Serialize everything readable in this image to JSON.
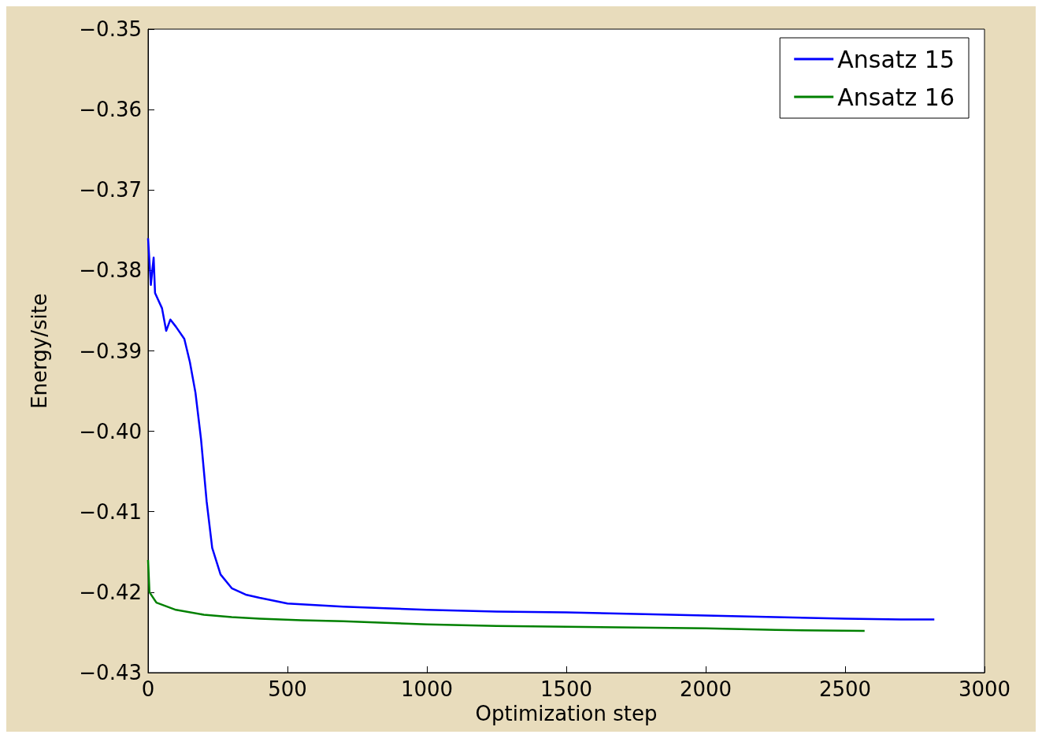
{
  "chart_data": {
    "type": "line",
    "xlabel": "Optimization step",
    "ylabel": "Energy/site",
    "xlim": [
      0,
      3000
    ],
    "xticks": [
      0,
      500,
      1000,
      1500,
      2000,
      2500,
      3000
    ],
    "ylim": [
      -0.43,
      -0.35
    ],
    "yticks": [
      -0.43,
      -0.42,
      -0.41,
      {
        "value": -0.4,
        "label": "−0.40"
      },
      -0.39,
      -0.38,
      -0.37,
      -0.36,
      -0.35
    ],
    "grid": false,
    "legend": "top right",
    "marker": "none",
    "line_style": "solid",
    "series": [
      {
        "name": "Ansatz 15",
        "color": "#0000ff",
        "x": [
          0,
          5,
          10,
          20,
          25,
          50,
          65,
          80,
          100,
          130,
          150,
          170,
          190,
          210,
          230,
          260,
          300,
          350,
          400,
          500,
          600,
          700,
          850,
          1000,
          1250,
          1500,
          1750,
          2000,
          2250,
          2500,
          2700,
          2820
        ],
        "values": [
          -0.376,
          -0.3789,
          -0.3818,
          -0.3784,
          -0.3828,
          -0.3847,
          -0.3875,
          -0.3861,
          -0.387,
          -0.3885,
          -0.3914,
          -0.3952,
          -0.401,
          -0.4087,
          -0.4145,
          -0.4178,
          -0.4195,
          -0.4203,
          -0.4207,
          -0.4214,
          -0.4216,
          -0.4218,
          -0.422,
          -0.4222,
          -0.4224,
          -0.4225,
          -0.4227,
          -0.4229,
          -0.4231,
          -0.4233,
          -0.4234,
          -0.4234
        ]
      },
      {
        "name": "Ansatz 16",
        "color": "#008000",
        "x": [
          0,
          5,
          30,
          100,
          200,
          300,
          400,
          550,
          700,
          850,
          1000,
          1250,
          1500,
          1750,
          2000,
          2250,
          2570
        ],
        "values": [
          -0.416,
          -0.42,
          -0.4213,
          -0.4222,
          -0.4228,
          -0.4231,
          -0.4233,
          -0.4235,
          -0.4236,
          -0.4238,
          -0.424,
          -0.4242,
          -0.4243,
          -0.4244,
          -0.4245,
          -0.4247,
          -0.4248
        ]
      }
    ]
  }
}
